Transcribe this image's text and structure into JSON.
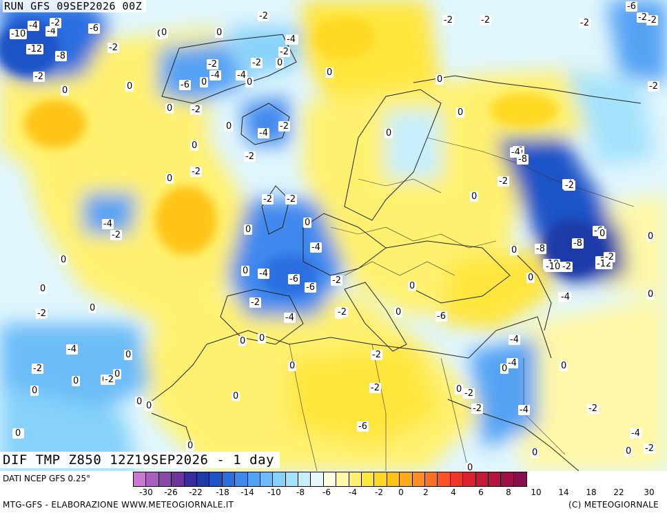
{
  "run_label": "RUN GFS 09SEP2026 00Z",
  "title": "DIF TMP Z850 12Z19SEP2026 - 1 day",
  "footer": {
    "source": "DATI NCEP GFS 0.25°",
    "credit": "MTG-GFS - ELABORAZIONE WWW.METEOGIORNALE.IT",
    "copyright": "(C) METEOGIORNALE"
  },
  "scale": {
    "colors": [
      "#c87ad2",
      "#a860c0",
      "#8a48ad",
      "#6d349a",
      "#3a2a9a",
      "#1e3aa8",
      "#1f52c6",
      "#2c6ee0",
      "#3f88ee",
      "#55a2f4",
      "#6cbcf8",
      "#86d2fa",
      "#a4e2fc",
      "#c6effd",
      "#e6f8fe",
      "#fefde0",
      "#fff8a8",
      "#fff170",
      "#ffe63c",
      "#ffd820",
      "#ffc418",
      "#ffaa18",
      "#ff8e1e",
      "#ff7022",
      "#ff5224",
      "#f03428",
      "#dc2030",
      "#c81838",
      "#b41440",
      "#a01048",
      "#8c0c50"
    ],
    "ticks": [
      "-30",
      "-26",
      "-22",
      "-18",
      "-14",
      "-10",
      "-8",
      "-6",
      "-4",
      "-2",
      "0",
      "2",
      "4",
      "6",
      "8",
      "10",
      "14",
      "18",
      "22",
      "30"
    ]
  },
  "map_labels": [
    {
      "text": "-6"
    },
    {
      "text": "-2"
    },
    {
      "text": "-10"
    },
    {
      "text": "-4"
    },
    {
      "text": "-6"
    },
    {
      "text": "-4"
    },
    {
      "text": "-12"
    },
    {
      "text": "-8"
    },
    {
      "text": "-2"
    },
    {
      "text": "-2"
    },
    {
      "text": "0"
    },
    {
      "text": "0"
    },
    {
      "text": "-2"
    },
    {
      "text": "0"
    },
    {
      "text": "-4"
    },
    {
      "text": "-2"
    },
    {
      "text": "-2"
    },
    {
      "text": "-4"
    },
    {
      "text": "0"
    },
    {
      "text": "0"
    },
    {
      "text": "-2"
    },
    {
      "text": "-4"
    },
    {
      "text": "-4"
    },
    {
      "text": "-6"
    },
    {
      "text": "0"
    },
    {
      "text": "0"
    },
    {
      "text": "-2"
    },
    {
      "text": "0"
    },
    {
      "text": "-2"
    },
    {
      "text": "0"
    },
    {
      "text": "-2"
    },
    {
      "text": "-2"
    },
    {
      "text": "-2"
    },
    {
      "text": "-6"
    },
    {
      "text": "-2"
    },
    {
      "text": "-4"
    },
    {
      "text": "-2"
    },
    {
      "text": "0"
    },
    {
      "text": "0"
    },
    {
      "text": "-2"
    },
    {
      "text": "0"
    },
    {
      "text": "-2"
    },
    {
      "text": "0"
    },
    {
      "text": "0"
    },
    {
      "text": "-4"
    },
    {
      "text": "-2"
    },
    {
      "text": "0"
    },
    {
      "text": "0"
    },
    {
      "text": "-4"
    },
    {
      "text": "-2"
    },
    {
      "text": "0"
    },
    {
      "text": "-2"
    },
    {
      "text": "0"
    },
    {
      "text": "-2"
    },
    {
      "text": "0"
    },
    {
      "text": "-2"
    },
    {
      "text": "-2"
    },
    {
      "text": "0"
    },
    {
      "text": "-4"
    },
    {
      "text": "-2"
    },
    {
      "text": "0"
    },
    {
      "text": "-4"
    },
    {
      "text": "0"
    },
    {
      "text": "0"
    },
    {
      "text": "0"
    },
    {
      "text": "-4"
    },
    {
      "text": "-6"
    },
    {
      "text": "-6"
    },
    {
      "text": "-2"
    },
    {
      "text": "0"
    },
    {
      "text": "-2"
    },
    {
      "text": "0"
    },
    {
      "text": "0"
    },
    {
      "text": "-2"
    },
    {
      "text": "-4"
    },
    {
      "text": "0"
    },
    {
      "text": "-4"
    },
    {
      "text": "-6"
    },
    {
      "text": "-8"
    },
    {
      "text": "-10"
    },
    {
      "text": "-2"
    },
    {
      "text": "-2"
    },
    {
      "text": "0"
    },
    {
      "text": "-4"
    },
    {
      "text": "-6"
    },
    {
      "text": "-8"
    },
    {
      "text": "0"
    },
    {
      "text": "-4"
    },
    {
      "text": "-8"
    },
    {
      "text": "-10"
    },
    {
      "text": "-12"
    },
    {
      "text": "-2"
    },
    {
      "text": "-2"
    },
    {
      "text": "0"
    },
    {
      "text": "0"
    },
    {
      "text": "0"
    },
    {
      "text": "0"
    },
    {
      "text": "-2"
    },
    {
      "text": "-4"
    },
    {
      "text": "0"
    },
    {
      "text": "0"
    },
    {
      "text": "-2"
    },
    {
      "text": "-2"
    },
    {
      "text": "0"
    },
    {
      "text": "0"
    },
    {
      "text": "0"
    },
    {
      "text": "0"
    },
    {
      "text": "0"
    },
    {
      "text": "0"
    },
    {
      "text": "0"
    },
    {
      "text": "-2"
    },
    {
      "text": "-4"
    },
    {
      "text": "-2"
    },
    {
      "text": "-2"
    },
    {
      "text": "-6"
    },
    {
      "text": "-4"
    },
    {
      "text": "-2"
    },
    {
      "text": "-2"
    },
    {
      "text": "0"
    },
    {
      "text": "0"
    },
    {
      "text": "0"
    },
    {
      "text": "0"
    },
    {
      "text": "0"
    },
    {
      "text": "-2"
    },
    {
      "text": "0"
    },
    {
      "text": "0"
    },
    {
      "text": "0"
    }
  ]
}
